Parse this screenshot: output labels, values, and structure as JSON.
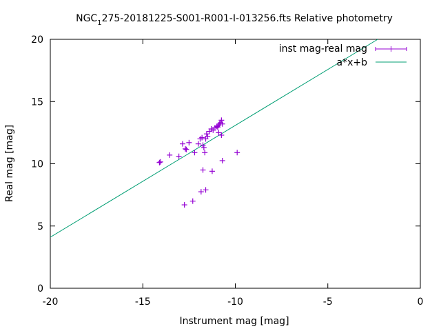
{
  "chart_data": {
    "type": "scatter",
    "title": "NGC_1275-20181225-S001-R001-I-013256.fts Relative photometry",
    "title_main": "NGC",
    "title_subscript": "1",
    "title_rest": "275-20181225-S001-R001-I-013256.fts Relative photometry",
    "xlabel": "Instrument mag [mag]",
    "ylabel": "Real mag [mag]",
    "xlim": [
      -20,
      0
    ],
    "ylim": [
      0,
      20
    ],
    "xticks": [
      -20,
      -15,
      -10,
      -5,
      0
    ],
    "yticks": [
      0,
      5,
      10,
      15,
      20
    ],
    "grid": false,
    "legend_position": "top-right",
    "series": [
      {
        "name": "inst mag-real mag",
        "kind": "points-with-errorbars",
        "color": "#9400d3",
        "points": [
          {
            "x": -14.1,
            "y": 10.1
          },
          {
            "x": -14.05,
            "y": 10.15
          },
          {
            "x": -13.55,
            "y": 10.7
          },
          {
            "x": -13.05,
            "y": 10.6
          },
          {
            "x": -12.85,
            "y": 11.6
          },
          {
            "x": -12.7,
            "y": 11.2
          },
          {
            "x": -12.65,
            "y": 11.15
          },
          {
            "x": -12.5,
            "y": 11.7
          },
          {
            "x": -12.2,
            "y": 10.9
          },
          {
            "x": -12.0,
            "y": 11.6
          },
          {
            "x": -11.9,
            "y": 12.0
          },
          {
            "x": -11.8,
            "y": 12.1
          },
          {
            "x": -11.75,
            "y": 11.5
          },
          {
            "x": -11.7,
            "y": 11.3
          },
          {
            "x": -11.65,
            "y": 10.9
          },
          {
            "x": -11.6,
            "y": 12.0
          },
          {
            "x": -11.55,
            "y": 12.4
          },
          {
            "x": -11.5,
            "y": 12.2
          },
          {
            "x": -11.4,
            "y": 12.6
          },
          {
            "x": -11.3,
            "y": 12.8
          },
          {
            "x": -11.2,
            "y": 12.7
          },
          {
            "x": -11.1,
            "y": 12.9
          },
          {
            "x": -11.0,
            "y": 13.0
          },
          {
            "x": -10.95,
            "y": 12.95
          },
          {
            "x": -10.9,
            "y": 13.1
          },
          {
            "x": -10.85,
            "y": 13.2
          },
          {
            "x": -10.8,
            "y": 13.3
          },
          {
            "x": -10.75,
            "y": 13.5
          },
          {
            "x": -10.7,
            "y": 13.2
          },
          {
            "x": -10.9,
            "y": 12.5
          },
          {
            "x": -10.75,
            "y": 12.3
          },
          {
            "x": -11.75,
            "y": 9.5
          },
          {
            "x": -11.25,
            "y": 9.4
          },
          {
            "x": -9.9,
            "y": 10.9
          },
          {
            "x": -10.7,
            "y": 10.25
          },
          {
            "x": -11.85,
            "y": 7.75
          },
          {
            "x": -11.6,
            "y": 7.9
          },
          {
            "x": -12.3,
            "y": 7.0
          },
          {
            "x": -12.75,
            "y": 6.7
          }
        ]
      },
      {
        "name": "a*x+b",
        "kind": "line",
        "color": "#009e73",
        "x": [
          -20,
          -2.3
        ],
        "y": [
          4.1,
          20
        ]
      }
    ]
  }
}
